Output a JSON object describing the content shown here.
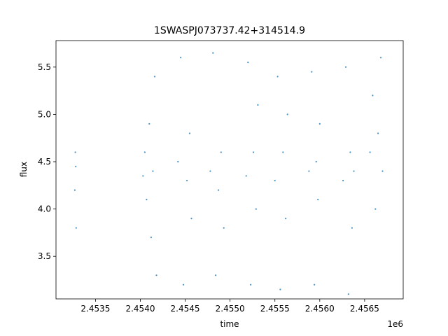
{
  "chart_data": {
    "type": "scatter",
    "title": "1SWASPJ073737.42+314514.9",
    "xlabel": "time",
    "ylabel": "flux",
    "x_offset_label": "1e6",
    "xlim": [
      2453060,
      2456930
    ],
    "ylim": [
      3.05,
      5.78
    ],
    "x_ticks": [
      {
        "value": 2453500,
        "label": "2.4535"
      },
      {
        "value": 2454000,
        "label": "2.4540"
      },
      {
        "value": 2454500,
        "label": "2.4545"
      },
      {
        "value": 2455000,
        "label": "2.4550"
      },
      {
        "value": 2455500,
        "label": "2.4555"
      },
      {
        "value": 2456000,
        "label": "2.4560"
      },
      {
        "value": 2456500,
        "label": "2.4565"
      }
    ],
    "y_ticks": [
      {
        "value": 3.5,
        "label": "3.5"
      },
      {
        "value": 4.0,
        "label": "4.0"
      },
      {
        "value": 4.5,
        "label": "4.5"
      },
      {
        "value": 5.0,
        "label": "5.0"
      },
      {
        "value": 5.5,
        "label": "5.5"
      }
    ],
    "grid": false,
    "point_color": "#1f77b4",
    "series": [
      {
        "values": [
          {
            "x": 2453280,
            "y": 4.45
          },
          {
            "x": 2453270,
            "y": 4.2
          },
          {
            "x": 2453285,
            "y": 3.8
          },
          {
            "x": 2453275,
            "y": 4.6
          },
          {
            "x": 2454030,
            "y": 4.35
          },
          {
            "x": 2454050,
            "y": 4.6
          },
          {
            "x": 2454070,
            "y": 4.1
          },
          {
            "x": 2454100,
            "y": 4.9
          },
          {
            "x": 2454120,
            "y": 3.7
          },
          {
            "x": 2454140,
            "y": 4.4
          },
          {
            "x": 2454160,
            "y": 5.4
          },
          {
            "x": 2454180,
            "y": 3.3
          },
          {
            "x": 2454420,
            "y": 4.5
          },
          {
            "x": 2454450,
            "y": 5.6
          },
          {
            "x": 2454480,
            "y": 3.2
          },
          {
            "x": 2454520,
            "y": 4.3
          },
          {
            "x": 2454550,
            "y": 4.8
          },
          {
            "x": 2454570,
            "y": 3.9
          },
          {
            "x": 2454780,
            "y": 4.4
          },
          {
            "x": 2454810,
            "y": 5.65
          },
          {
            "x": 2454840,
            "y": 3.3
          },
          {
            "x": 2454870,
            "y": 4.2
          },
          {
            "x": 2454900,
            "y": 4.6
          },
          {
            "x": 2454930,
            "y": 3.8
          },
          {
            "x": 2455180,
            "y": 4.35
          },
          {
            "x": 2455200,
            "y": 5.55
          },
          {
            "x": 2455230,
            "y": 3.2
          },
          {
            "x": 2455260,
            "y": 4.6
          },
          {
            "x": 2455290,
            "y": 4.0
          },
          {
            "x": 2455310,
            "y": 5.1
          },
          {
            "x": 2455500,
            "y": 4.3
          },
          {
            "x": 2455530,
            "y": 5.4
          },
          {
            "x": 2455560,
            "y": 3.15
          },
          {
            "x": 2455590,
            "y": 4.6
          },
          {
            "x": 2455620,
            "y": 3.9
          },
          {
            "x": 2455640,
            "y": 5.0
          },
          {
            "x": 2455880,
            "y": 4.4
          },
          {
            "x": 2455910,
            "y": 5.45
          },
          {
            "x": 2455940,
            "y": 3.2
          },
          {
            "x": 2455960,
            "y": 4.5
          },
          {
            "x": 2455980,
            "y": 4.1
          },
          {
            "x": 2456000,
            "y": 4.9
          },
          {
            "x": 2456260,
            "y": 4.3
          },
          {
            "x": 2456290,
            "y": 5.5
          },
          {
            "x": 2456320,
            "y": 3.1
          },
          {
            "x": 2456340,
            "y": 4.6
          },
          {
            "x": 2456360,
            "y": 3.8
          },
          {
            "x": 2456380,
            "y": 4.4
          },
          {
            "x": 2456560,
            "y": 4.6
          },
          {
            "x": 2456590,
            "y": 5.2
          },
          {
            "x": 2456620,
            "y": 4.0
          },
          {
            "x": 2456650,
            "y": 4.8
          },
          {
            "x": 2456680,
            "y": 5.6
          },
          {
            "x": 2456700,
            "y": 4.4
          }
        ]
      }
    ]
  }
}
